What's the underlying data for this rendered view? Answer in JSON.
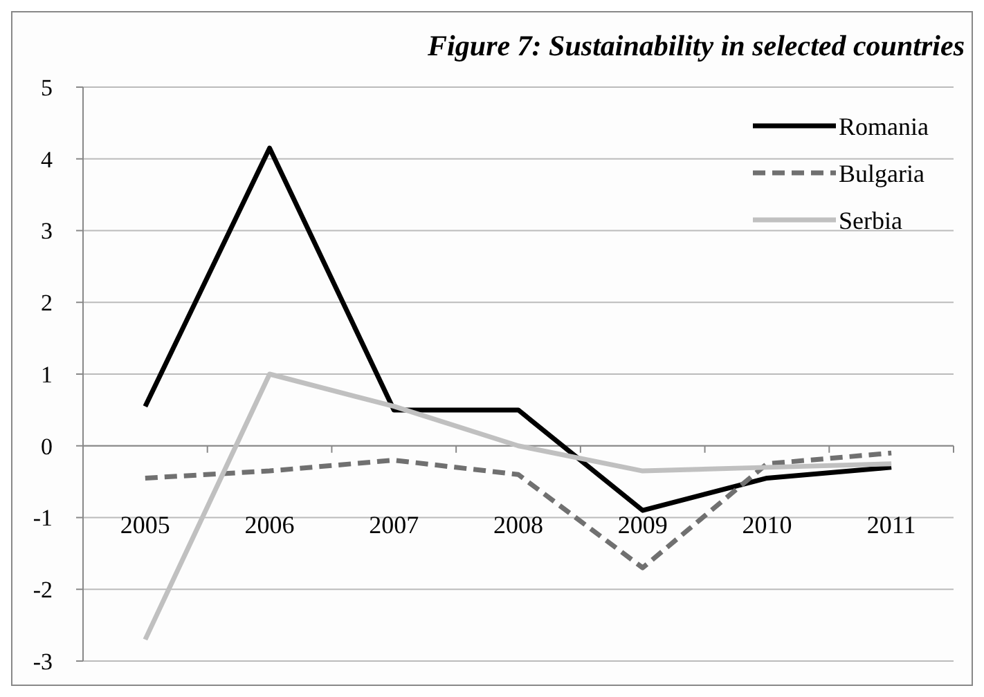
{
  "chart_data": {
    "type": "line",
    "title": "Figure 7: Sustainability in selected countries",
    "categories": [
      "2005",
      "2006",
      "2007",
      "2008",
      "2009",
      "2010",
      "2011"
    ],
    "series": [
      {
        "name": "Romania",
        "color": "#000000",
        "line_style": "solid",
        "values": [
          0.55,
          4.15,
          0.5,
          0.5,
          -0.9,
          -0.45,
          -0.3
        ]
      },
      {
        "name": "Bulgaria",
        "color": "#707070",
        "line_style": "dashed",
        "values": [
          -0.45,
          -0.35,
          -0.2,
          -0.4,
          -1.7,
          -0.25,
          -0.1
        ]
      },
      {
        "name": "Serbia",
        "color": "#c0c0c0",
        "line_style": "solid",
        "values": [
          -2.7,
          1.0,
          0.55,
          0.0,
          -0.35,
          -0.3,
          -0.25
        ]
      }
    ],
    "ylim": [
      -3,
      5
    ],
    "yticks": [
      -3,
      -2,
      -1,
      0,
      1,
      2,
      3,
      4,
      5
    ],
    "grid": "y",
    "legend": "top right"
  }
}
